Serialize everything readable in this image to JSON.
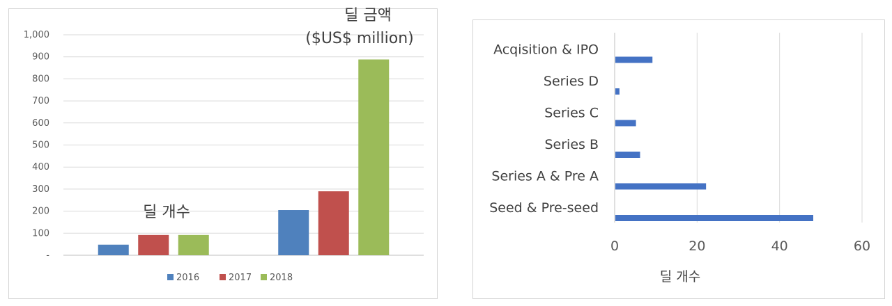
{
  "chart_data": [
    {
      "type": "bar",
      "categories": [
        "딜 개수",
        "딜 금액"
      ],
      "category_labels_on_axis": false,
      "series": [
        {
          "name": "2016",
          "color": "#4f81bd",
          "values": [
            48,
            205
          ]
        },
        {
          "name": "2017",
          "color": "#c0504d",
          "values": [
            92,
            290
          ]
        },
        {
          "name": "2018",
          "color": "#9bbb59",
          "values": [
            92,
            888
          ]
        }
      ],
      "y_ticks": [
        "-",
        "100",
        "200",
        "300",
        "400",
        "500",
        "600",
        "700",
        "800",
        "900",
        "1,000"
      ],
      "ylim": [
        0,
        1000
      ],
      "grid": true,
      "legend": "bottom",
      "annotations": [
        {
          "text": "딜 개수",
          "lines": [
            "딜 개수"
          ]
        },
        {
          "text": "딜 금액 ($US$ million)",
          "lines": [
            "딜 금액",
            "($US$ million)"
          ]
        }
      ]
    },
    {
      "type": "bar",
      "orientation": "horizontal",
      "categories": [
        "Seed & Pre-seed",
        "Series A & Pre A",
        "Series B",
        "Series C",
        "Series D",
        "Acqisition & IPO"
      ],
      "values": [
        48,
        22,
        6,
        5,
        1,
        9
      ],
      "bar_color": "#4472c4",
      "x_ticks": [
        "0",
        "20",
        "40",
        "60"
      ],
      "xlim": [
        0,
        60
      ],
      "xlabel": "딜 개수",
      "grid": true
    }
  ]
}
